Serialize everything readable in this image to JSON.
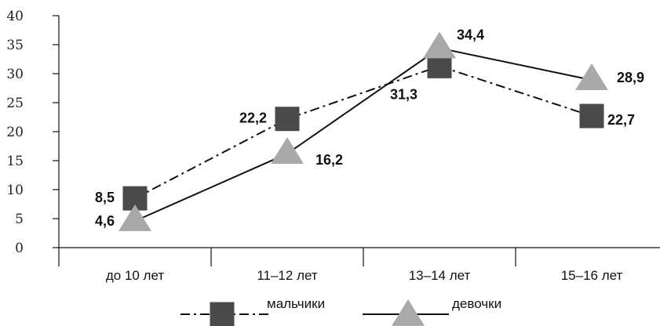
{
  "chart_data": {
    "type": "line",
    "categories": [
      "до 10 лет",
      "11–12 лет",
      "13–14 лет",
      "15–16 лет"
    ],
    "ylim": [
      0,
      40
    ],
    "yticks": [
      0,
      5,
      10,
      15,
      20,
      25,
      30,
      35,
      40
    ],
    "grid": false,
    "legend_position": "bottom",
    "series": [
      {
        "name": "мальчики",
        "values": [
          8.5,
          22.2,
          31.3,
          22.7
        ],
        "labels": [
          "8,5",
          "22,2",
          "31,3",
          "22,7"
        ],
        "marker": "square",
        "line_style": "dash-dot",
        "color": "#4a4a4a"
      },
      {
        "name": "девочки",
        "values": [
          4.6,
          16.2,
          34.4,
          28.9
        ],
        "labels": [
          "4,6",
          "16,2",
          "34,4",
          "28,9"
        ],
        "marker": "triangle",
        "line_style": "solid",
        "color": "#a9a9a9"
      }
    ]
  }
}
